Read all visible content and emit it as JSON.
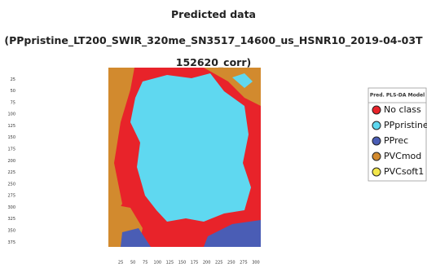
{
  "chart_data": {
    "type": "image",
    "title": "Predicted data",
    "subtitle": "(PPpristine_LT200_SWIR_320me_SN3517_14600_us_HSNR10_2019-04-03T152620_corr)",
    "xlim": [
      0,
      310
    ],
    "ylim": [
      0,
      385
    ],
    "xticks": [
      25,
      50,
      75,
      100,
      125,
      150,
      175,
      200,
      225,
      250,
      275,
      300
    ],
    "yticks": [
      25,
      50,
      75,
      100,
      125,
      150,
      175,
      200,
      225,
      250,
      275,
      300,
      325,
      350,
      375
    ],
    "legend_title": "Pred. PLS-DA Model",
    "legend_position": "right",
    "classes": [
      {
        "name": "No class",
        "color": "#e8232a"
      },
      {
        "name": "PPpristine",
        "color": "#5fd8f0"
      },
      {
        "name": "PPrec",
        "color": "#4a5db5"
      },
      {
        "name": "PVCmod",
        "color": "#d28a2e"
      },
      {
        "name": "PVCsoft1",
        "color": "#f2e64a"
      }
    ]
  }
}
